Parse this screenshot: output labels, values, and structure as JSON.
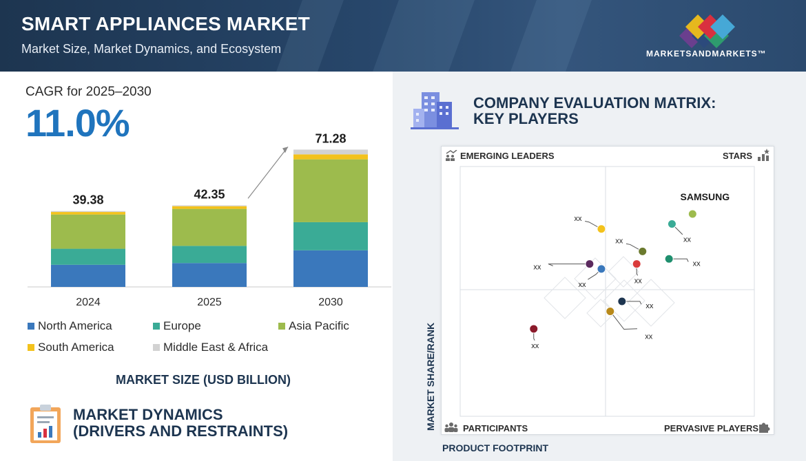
{
  "header": {
    "title": "SMART APPLIANCES MARKET",
    "subtitle": "Market Size, Market Dynamics, and Ecosystem",
    "logo_text": "MARKETSANDMARKETS™"
  },
  "cagr": {
    "label": "CAGR for 2025–2030",
    "value": "11.0%"
  },
  "colors": {
    "north_america": "#3a78bc",
    "europe": "#3aab96",
    "asia_pacific": "#9dbb4d",
    "south_america": "#f3c21c",
    "middle_east_africa": "#d2d2d2",
    "navy": "#1d3550",
    "accent": "#1f74bd"
  },
  "chart_data": [
    {
      "type": "bar",
      "stacked": true,
      "title": "MARKET SIZE (USD BILLION)",
      "categories": [
        "2024",
        "2025",
        "2030"
      ],
      "totals": [
        39.38,
        42.35,
        71.28
      ],
      "series": [
        {
          "name": "North America",
          "values": [
            11.5,
            12.4,
            19.0
          ]
        },
        {
          "name": "Europe",
          "values": [
            8.3,
            8.9,
            14.6
          ]
        },
        {
          "name": "Asia Pacific",
          "values": [
            17.8,
            19.2,
            32.6
          ]
        },
        {
          "name": "South America",
          "values": [
            1.3,
            1.4,
            2.6
          ]
        },
        {
          "name": "Middle East & Africa",
          "values": [
            0.48,
            0.45,
            2.48
          ]
        }
      ],
      "ylim": [
        0,
        72
      ],
      "legend": "bottom"
    },
    {
      "type": "scatter",
      "title": "COMPANY EVALUATION MATRIX: KEY PLAYERS",
      "xlabel": "PRODUCT FOOTPRINT",
      "ylabel": "MARKET SHARE/RANK",
      "xlim": [
        0,
        100
      ],
      "ylim": [
        0,
        100
      ],
      "quadrants": {
        "top_left": "EMERGING LEADERS",
        "top_right": "STARS",
        "bottom_left": "PARTICIPANTS",
        "bottom_right": "PERVASIVE PLAYERS"
      },
      "points": [
        {
          "label": "SAMSUNG",
          "x": 79,
          "y": 81,
          "color": "#9dbb4d",
          "label_pos": "above"
        },
        {
          "label": "XX",
          "x": 72,
          "y": 77,
          "color": "#3aab96",
          "label_pos": "below-right"
        },
        {
          "label": "XX",
          "x": 48,
          "y": 75,
          "color": "#f3c21c",
          "label_pos": "upper-left"
        },
        {
          "label": "XX",
          "x": 62,
          "y": 66,
          "color": "#6b7a2e",
          "label_pos": "upper-left"
        },
        {
          "label": "XX",
          "x": 71,
          "y": 63,
          "color": "#1f8f6e",
          "label_pos": "right"
        },
        {
          "label": "XX",
          "x": 44,
          "y": 61,
          "color": "#5b2a5e",
          "label_pos": "left"
        },
        {
          "label": "XX",
          "x": 48,
          "y": 59,
          "color": "#3a78bc",
          "label_pos": "lower-left"
        },
        {
          "label": "XX",
          "x": 60,
          "y": 61,
          "color": "#d93b3b",
          "label_pos": "below"
        },
        {
          "label": "XX",
          "x": 55,
          "y": 46,
          "color": "#1d3550",
          "label_pos": "right"
        },
        {
          "label": "XX",
          "x": 51,
          "y": 42,
          "color": "#b8891a",
          "label_pos": "lower-right"
        },
        {
          "label": "XX",
          "x": 25,
          "y": 35,
          "color": "#8b1a2b",
          "label_pos": "below"
        }
      ]
    }
  ],
  "market_size_label": "MARKET SIZE (USD BILLION)",
  "market_dynamics": {
    "line1": "MARKET DYNAMICS",
    "line2": "(DRIVERS AND RESTRAINTS)"
  },
  "icons": {
    "market_dynamics": "clipboard-chart-icon",
    "matrix_header": "buildings-icon",
    "emerging": "growth-people-icon",
    "stars": "star-bars-icon",
    "participants": "people-group-icon",
    "pervasive": "puzzle-icon"
  }
}
